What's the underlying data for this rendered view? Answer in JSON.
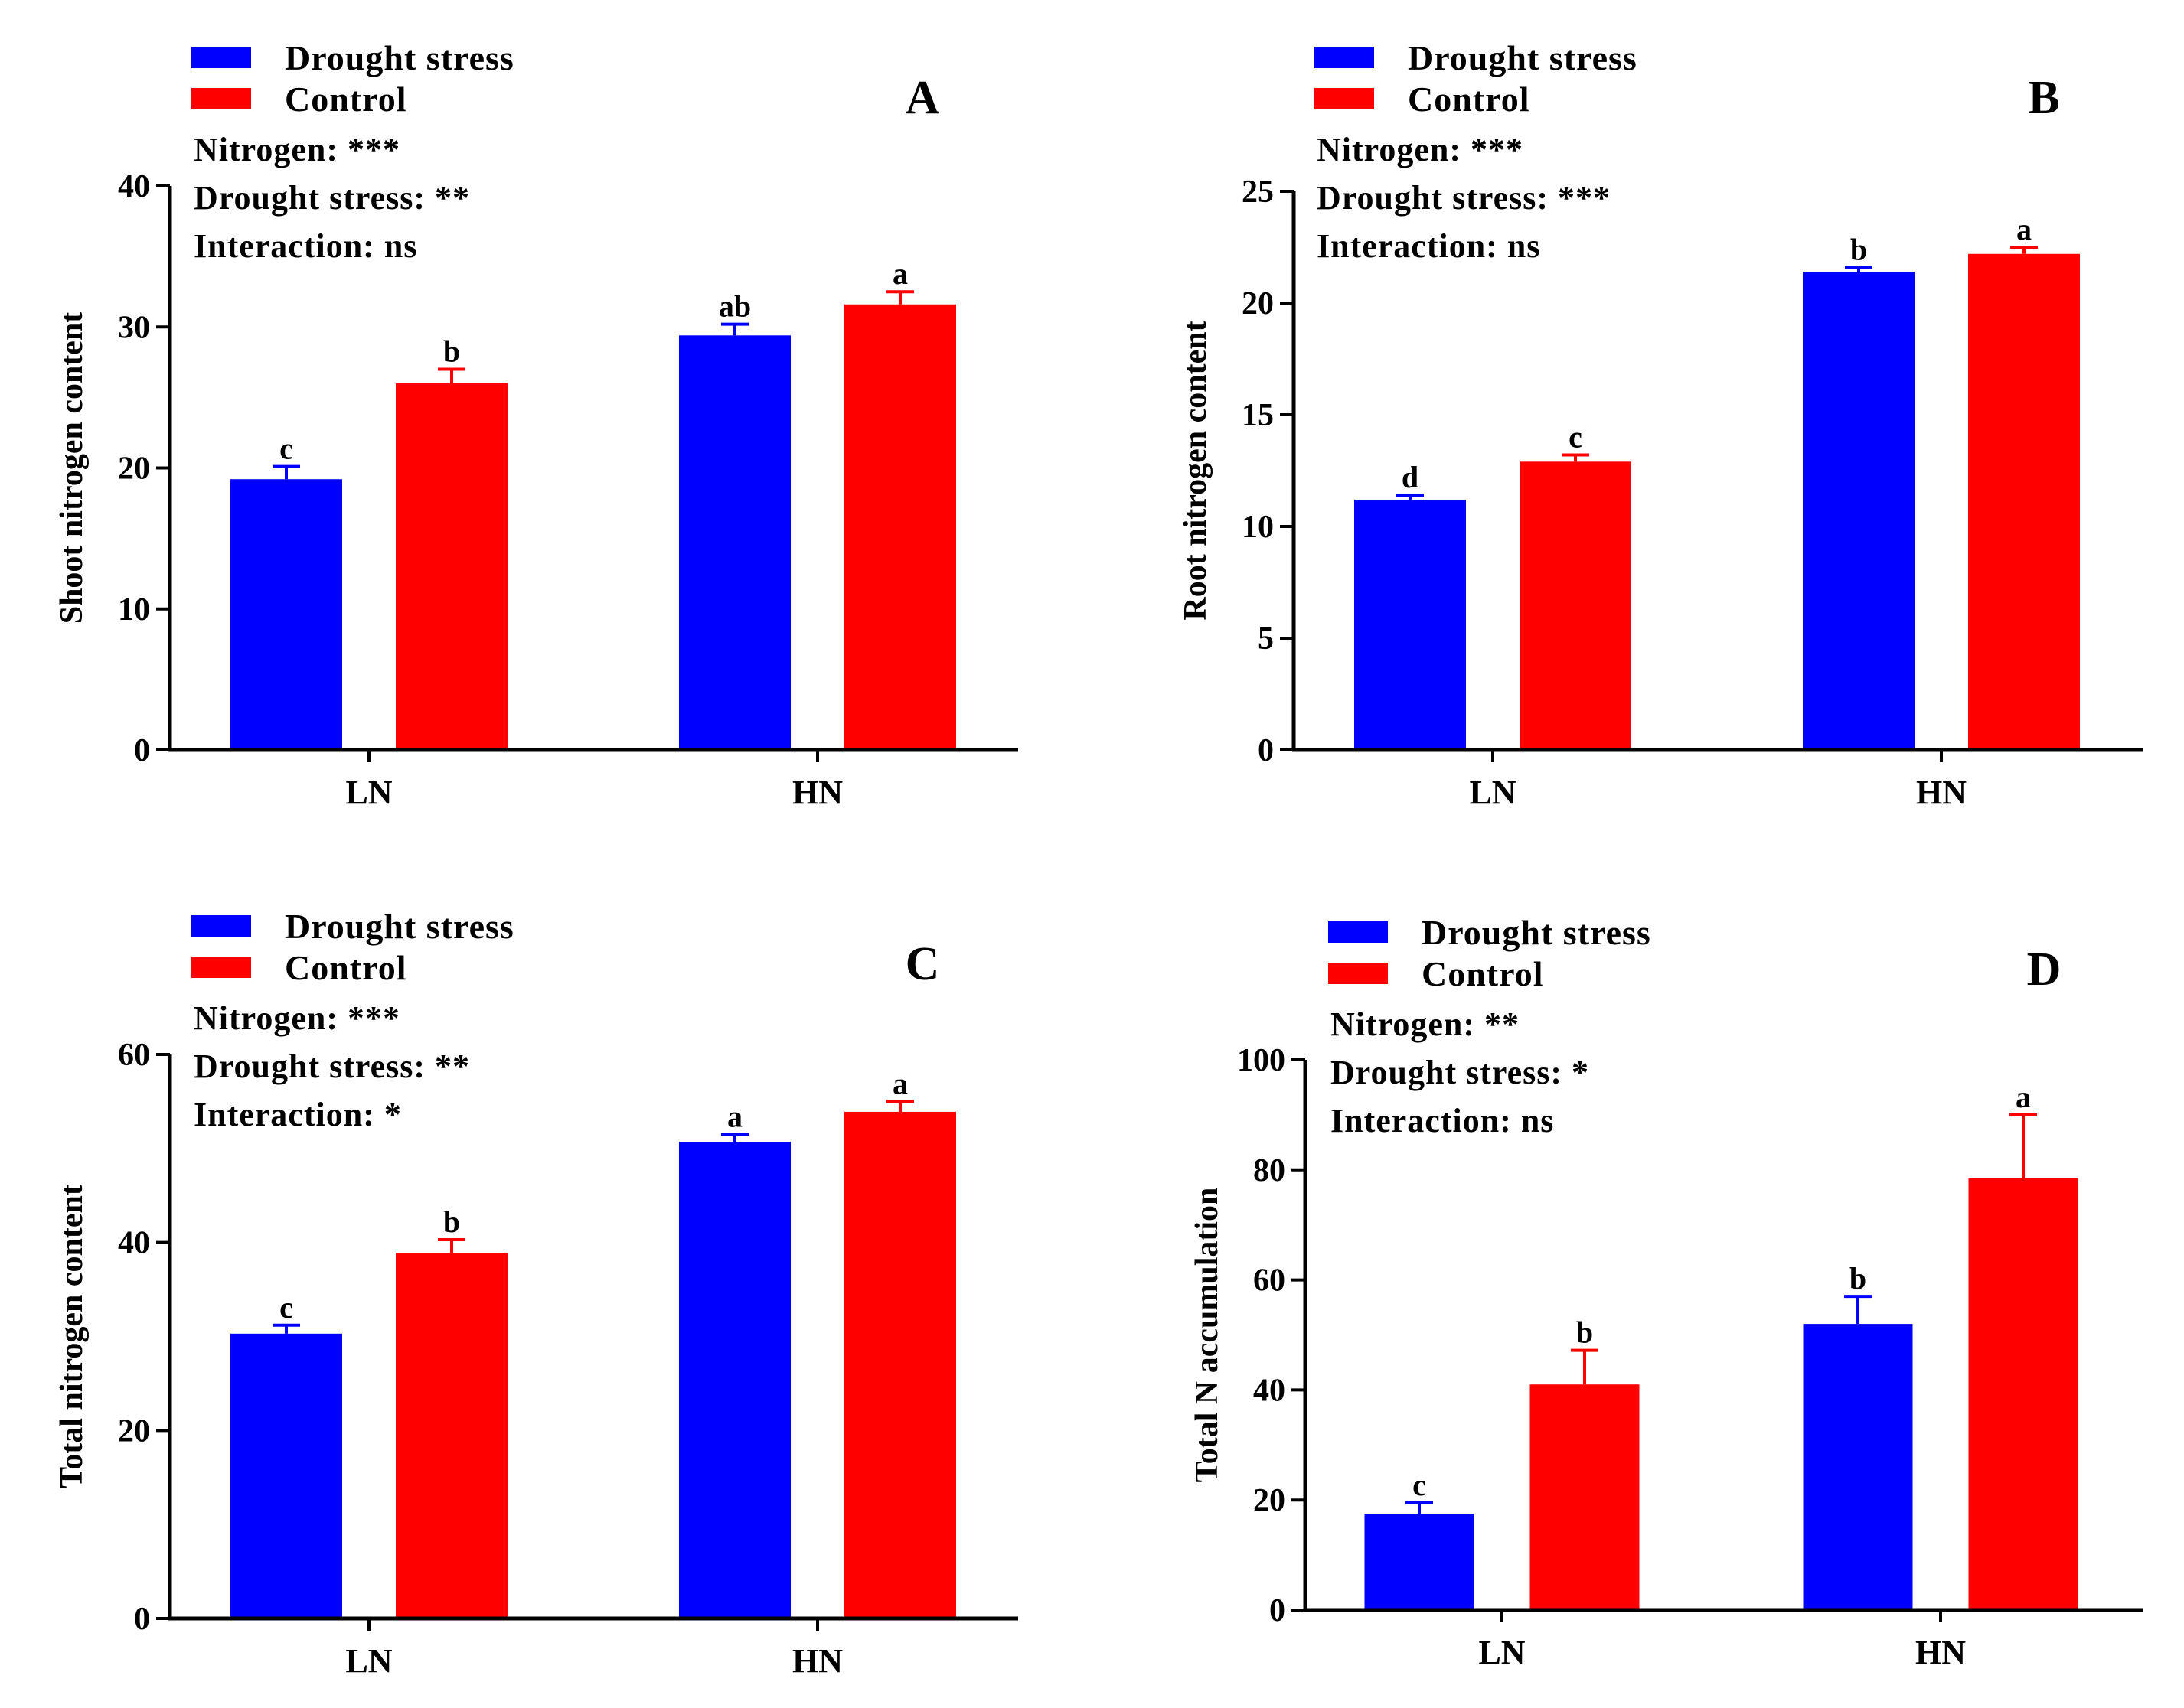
{
  "chart_data": [
    {
      "type": "bar",
      "panel": "A",
      "categories": [
        "LN",
        "HN"
      ],
      "series": [
        {
          "name": "Drought stress",
          "values": [
            19.2,
            29.4
          ],
          "errors": [
            0.9,
            0.8
          ],
          "sig": [
            "c",
            "ab"
          ]
        },
        {
          "name": "Control",
          "values": [
            26.0,
            31.6
          ],
          "errors": [
            1.0,
            0.9
          ],
          "sig": [
            "b",
            "a"
          ]
        }
      ],
      "ylabel": "Shoot nitrogen content",
      "xlabel": "",
      "ylim": [
        0,
        40
      ],
      "yticks": [
        0,
        10,
        20,
        30,
        40
      ],
      "legend_position": "top-left",
      "stats": [
        "Nitrogen: ***",
        "Drought stress: **",
        "Interaction: ns"
      ]
    },
    {
      "type": "bar",
      "panel": "B",
      "categories": [
        "LN",
        "HN"
      ],
      "series": [
        {
          "name": "Drought stress",
          "values": [
            11.2,
            21.4
          ],
          "errors": [
            0.2,
            0.2
          ],
          "sig": [
            "d",
            "b"
          ]
        },
        {
          "name": "Control",
          "values": [
            12.9,
            22.2
          ],
          "errors": [
            0.3,
            0.3
          ],
          "sig": [
            "c",
            "a"
          ]
        }
      ],
      "ylabel": "Root nitrogen content",
      "xlabel": "",
      "ylim": [
        0,
        25
      ],
      "yticks": [
        0,
        5,
        10,
        15,
        20,
        25
      ],
      "legend_position": "top-left",
      "stats": [
        "Nitrogen: ***",
        "Drought stress: ***",
        "Interaction: ns"
      ]
    },
    {
      "type": "bar",
      "panel": "C",
      "categories": [
        "LN",
        "HN"
      ],
      "series": [
        {
          "name": "Drought stress",
          "values": [
            30.3,
            50.7
          ],
          "errors": [
            0.9,
            0.8
          ],
          "sig": [
            "c",
            "a"
          ]
        },
        {
          "name": "Control",
          "values": [
            38.9,
            53.9
          ],
          "errors": [
            1.4,
            1.1
          ],
          "sig": [
            "b",
            "a"
          ]
        }
      ],
      "ylabel": "Total nitrogen content",
      "xlabel": "",
      "ylim": [
        0,
        60
      ],
      "yticks": [
        0,
        20,
        40,
        60
      ],
      "legend_position": "top-left",
      "stats": [
        "Nitrogen: ***",
        "Drought stress: **",
        "Interaction: *"
      ]
    },
    {
      "type": "bar",
      "panel": "D",
      "categories": [
        "LN",
        "HN"
      ],
      "series": [
        {
          "name": "Drought stress",
          "values": [
            17.5,
            52.0
          ],
          "errors": [
            2.0,
            5.0
          ],
          "sig": [
            "c",
            "b"
          ]
        },
        {
          "name": "Control",
          "values": [
            41.0,
            78.5
          ],
          "errors": [
            6.2,
            11.5
          ],
          "sig": [
            "b",
            "a"
          ]
        }
      ],
      "ylabel": "Total N accumulation",
      "xlabel": "",
      "ylim": [
        0,
        100
      ],
      "yticks": [
        0,
        20,
        40,
        60,
        80,
        100
      ],
      "legend_position": "top-left",
      "stats": [
        "Nitrogen: **",
        "Drought stress: *",
        "Interaction: ns"
      ]
    }
  ],
  "colors": {
    "drought": "#0000ff",
    "control": "#ff0000",
    "axis": "#000000"
  }
}
